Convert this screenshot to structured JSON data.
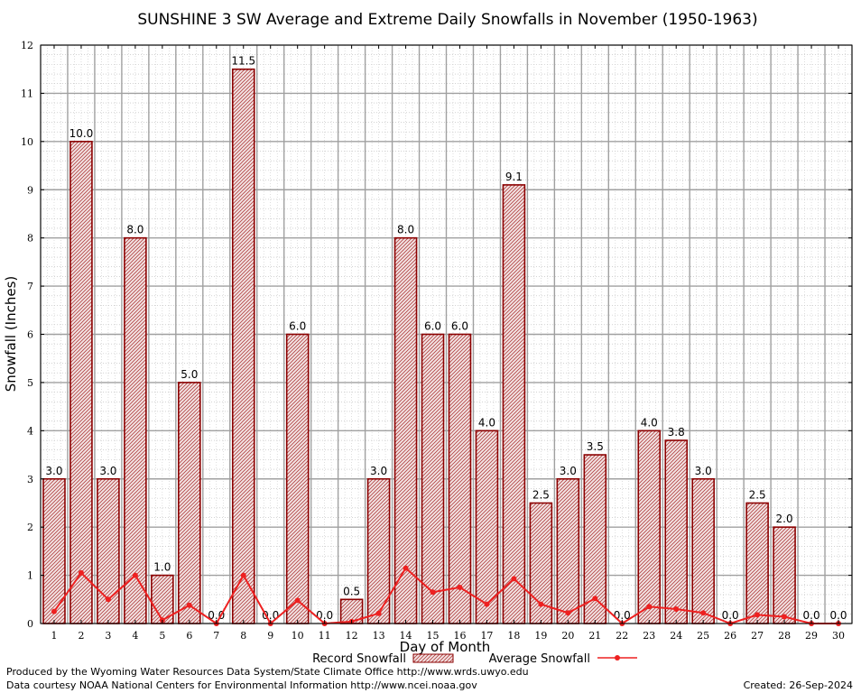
{
  "chart_data": {
    "type": "bar",
    "title": "SUNSHINE 3 SW Average and Extreme Daily Snowfalls in November (1950-1963)",
    "xlabel": "Day of Month",
    "ylabel": "Snowfall (Inches)",
    "ylim": [
      0,
      12
    ],
    "yticks": [
      "0",
      "1",
      "2",
      "3",
      "4",
      "5",
      "6",
      "7",
      "8",
      "9",
      "10",
      "11",
      "12"
    ],
    "grid": true,
    "legend_position": "bottom",
    "categories": [
      "1",
      "2",
      "3",
      "4",
      "5",
      "6",
      "7",
      "8",
      "9",
      "10",
      "11",
      "12",
      "13",
      "14",
      "15",
      "16",
      "17",
      "18",
      "19",
      "20",
      "21",
      "22",
      "23",
      "24",
      "25",
      "26",
      "27",
      "28",
      "29",
      "30"
    ],
    "series": [
      {
        "name": "Record Snowfall",
        "kind": "bar",
        "color": "#b00000",
        "values": [
          3.0,
          10.0,
          3.0,
          8.0,
          1.0,
          5.0,
          0.0,
          11.5,
          0.0,
          6.0,
          0.0,
          0.5,
          3.0,
          8.0,
          6.0,
          6.0,
          4.0,
          9.1,
          2.5,
          3.0,
          3.5,
          0.0,
          4.0,
          3.8,
          3.0,
          0.0,
          2.5,
          2.0,
          0.0,
          0.0
        ],
        "labels": [
          "3.0",
          "10.0",
          "3.0",
          "8.0",
          "1.0",
          "5.0",
          "0.0",
          "11.5",
          "0.0",
          "6.0",
          "0.0",
          "0.5",
          "3.0",
          "8.0",
          "6.0",
          "6.0",
          "4.0",
          "9.1",
          "2.5",
          "3.0",
          "3.5",
          "0.0",
          "4.0",
          "3.8",
          "3.0",
          "0.0",
          "2.5",
          "2.0",
          "0.0",
          "0.0"
        ]
      },
      {
        "name": "Average Snowfall",
        "kind": "line",
        "color": "#ee2020",
        "values": [
          0.25,
          1.05,
          0.5,
          1.0,
          0.07,
          0.38,
          0.0,
          1.0,
          0.0,
          0.48,
          0.0,
          0.04,
          0.21,
          1.15,
          0.65,
          0.75,
          0.4,
          0.93,
          0.4,
          0.22,
          0.52,
          0.0,
          0.35,
          0.3,
          0.22,
          0.0,
          0.18,
          0.14,
          0.0,
          0.0
        ]
      }
    ]
  },
  "footer": {
    "produced_by": "Produced by the Wyoming Water Resources Data System/State Climate Office http://www.wrds.uwyo.edu",
    "courtesy": "Data courtesy NOAA National Centers for Environmental Information http://www.ncei.noaa.gov",
    "created": "Created: 26-Sep-2024"
  }
}
